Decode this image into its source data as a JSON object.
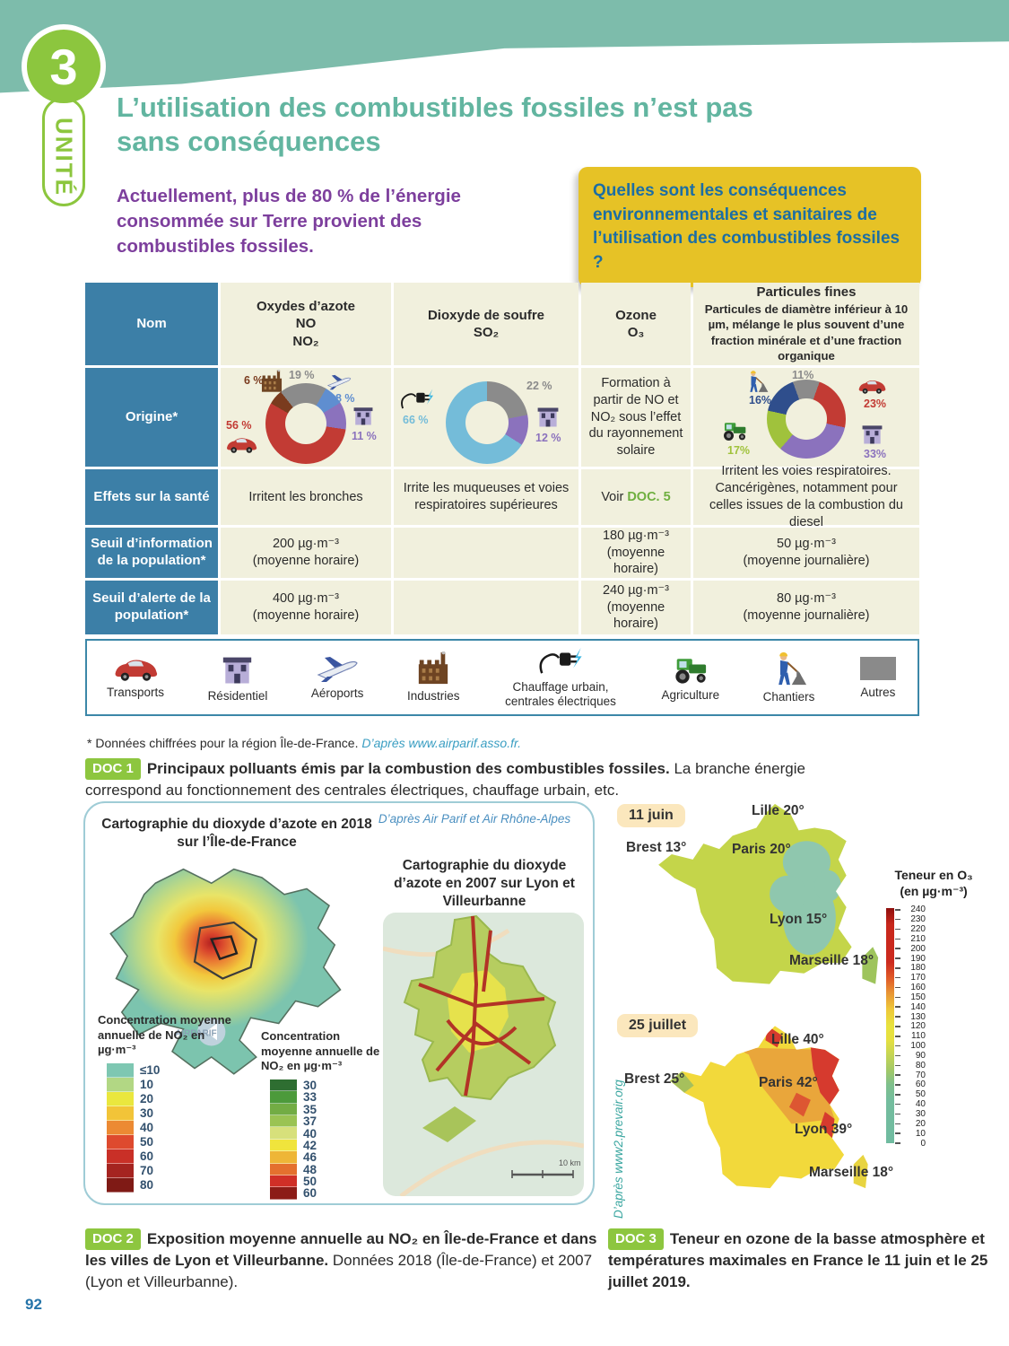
{
  "page_number": "92",
  "header": {
    "unit_number": "3",
    "unit_label": "UNITÉ",
    "title": "L’utilisation des combustibles fossiles n’est pas sans conséquences",
    "intro": "Actuellement, plus de 80 % de l’énergie consommée sur Terre provient des combustibles fossiles.",
    "question": "Quelles sont les conséquences environnementales et sanitaires de l’utilisation des combustibles fossiles ?"
  },
  "table": {
    "row_headers": [
      "Nom",
      "Origine*",
      "Effets sur la santé",
      "Seuil d’information de la population*",
      "Seuil d’alerte de la population*"
    ],
    "nom": {
      "col1": [
        "Oxydes d’azote",
        "NO",
        "NO₂"
      ],
      "col2": [
        "Dioxyde de soufre",
        "SO₂"
      ],
      "col3": [
        "Ozone",
        "O₃"
      ],
      "col4_title": "Particules fines",
      "col4_desc": "Particules de diamètre inférieur à 10 µm, mélange le plus souvent d’une fraction minérale et d’une fraction organique"
    },
    "origine_ozone": "Formation à partir de NO et NO₂ sous l’effet du rayonnement solaire",
    "effets": {
      "col1": "Irritent les bronches",
      "col2": "Irrite les muqueuses et voies respiratoires supérieures",
      "col3_pre": "Voir ",
      "col3_doc": "DOC. 5",
      "col4": "Irritent les voies respiratoires. Cancérigènes, notamment pour celles issues de la combustion du diesel"
    },
    "seuil_information": {
      "col1v": "200 µg·m⁻³",
      "col1u": "(moyenne horaire)",
      "col3v": "180 µg·m⁻³",
      "col3u": "(moyenne horaire)",
      "col4v": "50 µg·m⁻³",
      "col4u": "(moyenne journalière)"
    },
    "seuil_alerte": {
      "col1v": "400 µg·m⁻³",
      "col1u": "(moyenne horaire)",
      "col3v": "240 µg·m⁻³",
      "col3u": "(moyenne horaire)",
      "col4v": "80 µg·m⁻³",
      "col4u": "(moyenne journalière)"
    }
  },
  "pies": {
    "no_pie": {
      "start": 300,
      "slices": [
        {
          "label": "6 %",
          "value": 6,
          "color": "#7a3b1e",
          "sector": "Industries"
        },
        {
          "label": "19 %",
          "value": 19,
          "color": "#8b8b8b",
          "sector": "Autres"
        },
        {
          "label": "8 %",
          "value": 8,
          "color": "#5f8ed0",
          "sector": "Aéroports"
        },
        {
          "label": "11 %",
          "value": 11,
          "color": "#8b72bd",
          "sector": "Résidentiel"
        },
        {
          "label": "56 %",
          "value": 56,
          "color": "#c23b34",
          "sector": "Transports"
        }
      ]
    },
    "so2_pie": {
      "start": 0,
      "slices": [
        {
          "label": "22 %",
          "value": 22,
          "color": "#8b8b8b",
          "sector": "Autres"
        },
        {
          "label": "12 %",
          "value": 12,
          "color": "#8b72bd",
          "sector": "Résidentiel"
        },
        {
          "label": "66 %",
          "value": 66,
          "color": "#74bcd9",
          "sector": "Chauffage urbain, centrales électriques"
        }
      ]
    },
    "pm_pie": {
      "start": 340,
      "slices": [
        {
          "label": "11%",
          "value": 11,
          "color": "#8b8b8b",
          "sector": "Autres"
        },
        {
          "label": "23%",
          "value": 23,
          "color": "#c23b34",
          "sector": "Transports"
        },
        {
          "label": "33%",
          "value": 33,
          "color": "#8b72bd",
          "sector": "Résidentiel"
        },
        {
          "label": "17%",
          "value": 17,
          "color": "#a0c23c",
          "sector": "Agriculture"
        },
        {
          "label": "16%",
          "value": 16,
          "color": "#2f4e8c",
          "sector": "Chantiers"
        }
      ]
    }
  },
  "legend": {
    "items": [
      {
        "label": "Transports"
      },
      {
        "label": "Résidentiel"
      },
      {
        "label": "Aéroports"
      },
      {
        "label": "Industries"
      },
      {
        "label": "Chauffage urbain, centrales électriques"
      },
      {
        "label": "Agriculture"
      },
      {
        "label": "Chantiers"
      },
      {
        "label": "Autres"
      }
    ]
  },
  "footnote": {
    "text": "* Données chiffrées pour la région Île-de-France. ",
    "credit": "D’après www.airparif.asso.fr."
  },
  "doc1": {
    "badge": "DOC 1",
    "bold": "Principaux polluants émis par la combustion des combustibles fossiles.",
    "rest": " La branche énergie correspond au fonctionnement des centrales électriques, chauffage urbain, etc."
  },
  "doc2": {
    "credit": "D’après Air Parif et Air Rhône-Alpes",
    "map1_title": "Cartographie du dioxyde d’azote en 2018 sur l’Île-de-France",
    "map2_title": "Cartographie du dioxyde d’azote en 2007 sur Lyon et Villeurbanne",
    "legend_label": "Concentration moyenne annuelle de NO₂ en µg·m⁻³",
    "scale_idf": [
      {
        "label": "≤10",
        "color": "#7ec7b2"
      },
      {
        "label": "10",
        "color": "#b2d784"
      },
      {
        "label": "20",
        "color": "#eae73e"
      },
      {
        "label": "30",
        "color": "#f2c438"
      },
      {
        "label": "40",
        "color": "#ec8a33"
      },
      {
        "label": "50",
        "color": "#de4a2e"
      },
      {
        "label": "60",
        "color": "#c93027"
      },
      {
        "label": "70",
        "color": "#a52420"
      },
      {
        "label": "80",
        "color": "#7f1a15"
      }
    ],
    "scale_lyon": [
      {
        "label": "30",
        "color": "#2e6e31"
      },
      {
        "label": "33",
        "color": "#4c9a3b"
      },
      {
        "label": "35",
        "color": "#72ac44"
      },
      {
        "label": "37",
        "color": "#9ac353"
      },
      {
        "label": "40",
        "color": "#d7e07b"
      },
      {
        "label": "42",
        "color": "#f0e43c"
      },
      {
        "label": "46",
        "color": "#eeb637"
      },
      {
        "label": "48",
        "color": "#e4702e"
      },
      {
        "label": "50",
        "color": "#d02f27"
      },
      {
        "label": "60",
        "color": "#8c1c17"
      }
    ],
    "scalebar_label": "10 km",
    "caption_badge": "DOC 2",
    "caption_bold": "Exposition moyenne annuelle au NO₂ en Île-de-France et dans les villes de Lyon et Villeurbanne.",
    "caption_rest": " Données 2018 (Île-de-France) et 2007 (Lyon et Villeurbanne)."
  },
  "doc3": {
    "label1": "11 juin",
    "label2": "25 juillet",
    "credit": "D’après www2.prevair.org",
    "scale_title1": "Teneur en O₃",
    "scale_title2": "(en µg·m⁻³)",
    "ticks": [
      "240",
      "230",
      "220",
      "210",
      "200",
      "190",
      "180",
      "170",
      "160",
      "150",
      "140",
      "130",
      "120",
      "110",
      "100",
      "90",
      "80",
      "70",
      "60",
      "50",
      "40",
      "30",
      "20",
      "10",
      "0"
    ],
    "map1_cities": [
      "Lille 20°",
      "Brest 13°",
      "Paris 20°",
      "Lyon 15°",
      "Marseille 18°"
    ],
    "map2_cities": [
      "Lille 40°",
      "Brest 25°",
      "Paris 42°",
      "Lyon 39°",
      "Marseille 18°"
    ],
    "caption_badge": "DOC 3",
    "caption_bold": "Teneur en ozone de la basse atmosphère et températures maximales en France le 11 juin et le 25 juillet 2019."
  },
  "chart_data": [
    {
      "type": "pie",
      "title": "Origine des oxydes d’azote (NO, NO₂)",
      "categories": [
        "Industries",
        "Autres",
        "Aéroports",
        "Résidentiel",
        "Transports"
      ],
      "values": [
        6,
        19,
        8,
        11,
        56
      ]
    },
    {
      "type": "pie",
      "title": "Origine du dioxyde de soufre (SO₂)",
      "categories": [
        "Autres",
        "Résidentiel",
        "Chauffage urbain, centrales électriques"
      ],
      "values": [
        22,
        12,
        66
      ]
    },
    {
      "type": "pie",
      "title": "Origine des particules fines",
      "categories": [
        "Autres",
        "Transports",
        "Résidentiel",
        "Agriculture",
        "Chantiers"
      ],
      "values": [
        11,
        23,
        33,
        17,
        16
      ]
    },
    {
      "type": "heatmap",
      "title": "Teneur en O₃ (en µg·m⁻³)",
      "ylim": [
        0,
        240
      ],
      "annotations_11_juin": {
        "Lille": 20,
        "Brest": 13,
        "Paris": 20,
        "Lyon": 15,
        "Marseille": 18
      },
      "annotations_25_juillet": {
        "Lille": 40,
        "Brest": 25,
        "Paris": 42,
        "Lyon": 39,
        "Marseille": 18
      }
    }
  ]
}
